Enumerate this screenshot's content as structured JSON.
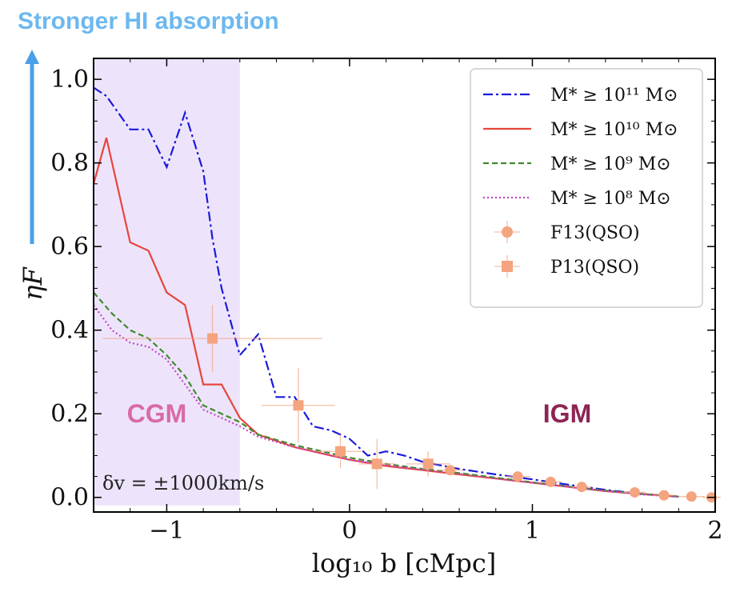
{
  "banner": "Stronger HI absorption",
  "colors": {
    "cgm_shade": "#ede4fb",
    "banner": "#6cb8f0",
    "arrow": "#4a9fe8",
    "cgm_text": "#d96aa8",
    "igm_text": "#8e2456",
    "obs": "#f4a47e"
  },
  "chart_data": {
    "type": "line",
    "xlabel": "log₁₀ b [cMpc]",
    "ylabel": "ηF",
    "xlim": [
      -1.4,
      2.0
    ],
    "ylim": [
      -0.035,
      1.05
    ],
    "xticks": [
      -1,
      0,
      1,
      2
    ],
    "xtick_labels": [
      "−1",
      "0",
      "1",
      "2"
    ],
    "yticks": [
      0.0,
      0.2,
      0.4,
      0.6,
      0.8,
      1.0
    ],
    "ytick_labels": [
      "0.0",
      "0.2",
      "0.4",
      "0.6",
      "0.8",
      "1.0"
    ],
    "cgm_region": [
      -1.4,
      -0.6
    ],
    "cgm_label": "CGM",
    "igm_label": "IGM",
    "velocity_note": "δv = ±1000km/s",
    "series": [
      {
        "name": "M* ≥ 10¹¹ M⊙",
        "color": "#1a1adb",
        "dash": "12,4,3,4",
        "x": [
          -1.4,
          -1.33,
          -1.2,
          -1.1,
          -1.0,
          -0.9,
          -0.8,
          -0.75,
          -0.7,
          -0.6,
          -0.5,
          -0.4,
          -0.3,
          -0.2,
          -0.1,
          0.0,
          0.1,
          0.2,
          0.3,
          0.4,
          0.6,
          0.8,
          1.0,
          1.2,
          1.4,
          1.6,
          1.8
        ],
        "y": [
          0.98,
          0.96,
          0.88,
          0.88,
          0.79,
          0.92,
          0.78,
          0.62,
          0.5,
          0.34,
          0.39,
          0.24,
          0.24,
          0.17,
          0.16,
          0.14,
          0.1,
          0.11,
          0.1,
          0.085,
          0.068,
          0.055,
          0.043,
          0.03,
          0.018,
          0.008,
          0.002
        ]
      },
      {
        "name": "M* ≥ 10¹⁰ M⊙",
        "color": "#e8453c",
        "dash": "",
        "x": [
          -1.4,
          -1.33,
          -1.2,
          -1.1,
          -1.0,
          -0.9,
          -0.8,
          -0.7,
          -0.6,
          -0.5,
          -0.3,
          -0.1,
          0.0,
          0.2,
          0.4,
          0.6,
          0.8,
          1.0,
          1.2,
          1.4,
          1.6,
          1.8
        ],
        "y": [
          0.75,
          0.86,
          0.61,
          0.59,
          0.49,
          0.46,
          0.27,
          0.27,
          0.19,
          0.15,
          0.12,
          0.1,
          0.09,
          0.075,
          0.065,
          0.055,
          0.045,
          0.035,
          0.025,
          0.015,
          0.008,
          0.002
        ]
      },
      {
        "name": "M* ≥ 10⁹ M⊙",
        "color": "#3f8a2c",
        "dash": "7,4",
        "x": [
          -1.4,
          -1.3,
          -1.2,
          -1.1,
          -1.0,
          -0.9,
          -0.8,
          -0.7,
          -0.6,
          -0.5,
          -0.3,
          -0.1,
          0.0,
          0.2,
          0.4,
          0.6,
          0.8,
          1.0,
          1.2,
          1.4,
          1.6,
          1.8
        ],
        "y": [
          0.49,
          0.44,
          0.4,
          0.38,
          0.34,
          0.29,
          0.22,
          0.2,
          0.18,
          0.15,
          0.125,
          0.105,
          0.095,
          0.08,
          0.068,
          0.058,
          0.047,
          0.036,
          0.026,
          0.016,
          0.008,
          0.002
        ]
      },
      {
        "name": "M* ≥ 10⁸ M⊙",
        "color": "#c245c8",
        "dash": "2,3",
        "x": [
          -1.4,
          -1.3,
          -1.2,
          -1.1,
          -1.0,
          -0.9,
          -0.8,
          -0.7,
          -0.6,
          -0.5,
          -0.3,
          -0.1,
          0.0,
          0.2,
          0.4,
          0.6,
          0.8,
          1.0,
          1.2,
          1.4,
          1.6,
          1.8
        ],
        "y": [
          0.46,
          0.4,
          0.37,
          0.36,
          0.33,
          0.27,
          0.21,
          0.19,
          0.17,
          0.145,
          0.12,
          0.1,
          0.09,
          0.077,
          0.066,
          0.056,
          0.045,
          0.035,
          0.025,
          0.015,
          0.007,
          0.001
        ]
      }
    ],
    "observations": [
      {
        "name": "F13(QSO)",
        "marker": "circle",
        "points": [
          {
            "x": 0.55,
            "y": 0.065,
            "xerr": 0.07,
            "yerr": 0.012
          },
          {
            "x": 0.92,
            "y": 0.05,
            "xerr": 0.07,
            "yerr": 0.01
          },
          {
            "x": 1.1,
            "y": 0.037,
            "xerr": 0.06,
            "yerr": 0.01
          },
          {
            "x": 1.27,
            "y": 0.025,
            "xerr": 0.06,
            "yerr": 0.008
          },
          {
            "x": 1.56,
            "y": 0.012,
            "xerr": 0.06,
            "yerr": 0.006
          },
          {
            "x": 1.72,
            "y": 0.005,
            "xerr": 0.06,
            "yerr": 0.005
          },
          {
            "x": 1.87,
            "y": 0.002,
            "xerr": 0.07,
            "yerr": 0.004
          },
          {
            "x": 1.98,
            "y": 0.0,
            "xerr": 0.05,
            "yerr": 0.003
          }
        ]
      },
      {
        "name": "P13(QSO)",
        "marker": "square",
        "points": [
          {
            "x": -0.75,
            "y": 0.38,
            "xerr": 0.6,
            "yerr": 0.08
          },
          {
            "x": -0.28,
            "y": 0.22,
            "xerr": 0.2,
            "yerr": 0.09
          },
          {
            "x": -0.05,
            "y": 0.11,
            "xerr": 0.12,
            "yerr": 0.04
          },
          {
            "x": 0.15,
            "y": 0.08,
            "xerr": 0.1,
            "yerr": 0.06
          },
          {
            "x": 0.43,
            "y": 0.08,
            "xerr": 0.12,
            "yerr": 0.03
          }
        ]
      }
    ]
  }
}
